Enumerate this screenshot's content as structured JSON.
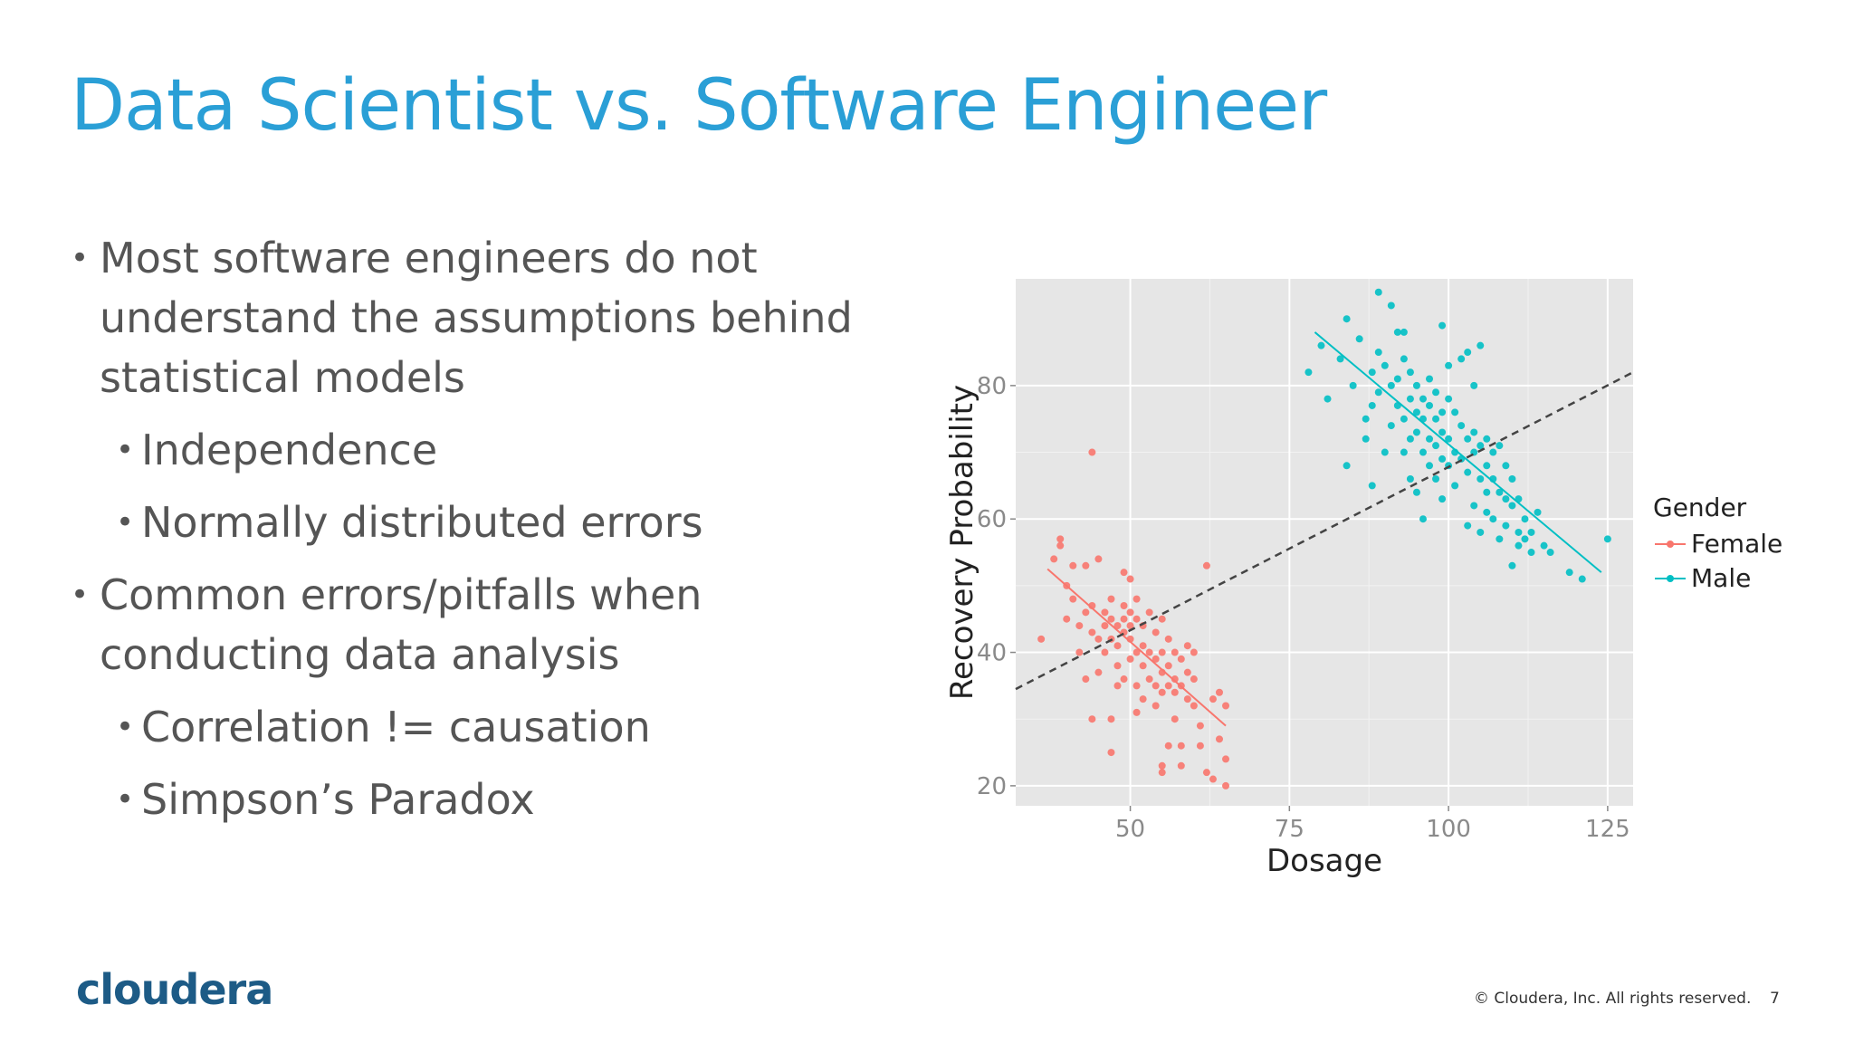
{
  "slide": {
    "title": "Data Scientist vs. Software Engineer",
    "bullets": [
      {
        "level": 1,
        "text": "Most software engineers do not understand the assumptions behind statistical models"
      },
      {
        "level": 2,
        "text": "Independence"
      },
      {
        "level": 2,
        "text": "Normally distributed errors"
      },
      {
        "level": 1,
        "text": "Common errors/pitfalls when conducting data analysis"
      },
      {
        "level": 2,
        "text": "Correlation != causation"
      },
      {
        "level": 2,
        "text": "Simpson’s Paradox"
      }
    ],
    "bullet_glyph": "•",
    "logo_text": "cloudera",
    "copyright": "© Cloudera, Inc. All rights reserved.",
    "page_number": "7"
  },
  "colors": {
    "title": "#2a9fd6",
    "text": "#555555",
    "logo": "#1d5b86",
    "panel": "#e6e6e6",
    "female": "#f8766d",
    "male": "#00bfc4",
    "overall_line": "#444444"
  },
  "chart_data": {
    "type": "scatter",
    "xlabel": "Dosage",
    "ylabel": "Recovery Probability",
    "xlim": [
      32,
      129
    ],
    "ylim": [
      17,
      96
    ],
    "xticks": [
      50,
      75,
      100,
      125
    ],
    "yticks": [
      20,
      40,
      60,
      80
    ],
    "grid": true,
    "legend_title": "Gender",
    "legend_position": "right",
    "series": [
      {
        "name": "Female",
        "color": "#f8766d",
        "trend": [
          [
            37,
            52.5
          ],
          [
            65,
            29
          ]
        ],
        "points": [
          [
            36,
            42
          ],
          [
            38,
            54
          ],
          [
            39,
            56
          ],
          [
            39,
            57
          ],
          [
            40,
            50
          ],
          [
            40,
            45
          ],
          [
            41,
            53
          ],
          [
            41,
            48
          ],
          [
            42,
            44
          ],
          [
            42,
            40
          ],
          [
            43,
            53
          ],
          [
            43,
            46
          ],
          [
            43,
            36
          ],
          [
            44,
            70
          ],
          [
            44,
            47
          ],
          [
            44,
            43
          ],
          [
            44,
            30
          ],
          [
            45,
            54
          ],
          [
            45,
            42
          ],
          [
            45,
            37
          ],
          [
            46,
            46
          ],
          [
            46,
            44
          ],
          [
            46,
            40
          ],
          [
            47,
            48
          ],
          [
            47,
            45
          ],
          [
            47,
            42
          ],
          [
            47,
            30
          ],
          [
            47,
            25
          ],
          [
            48,
            44
          ],
          [
            48,
            41
          ],
          [
            48,
            38
          ],
          [
            48,
            35
          ],
          [
            49,
            52
          ],
          [
            49,
            47
          ],
          [
            49,
            45
          ],
          [
            49,
            43
          ],
          [
            49,
            36
          ],
          [
            50,
            51
          ],
          [
            50,
            46
          ],
          [
            50,
            44
          ],
          [
            50,
            42
          ],
          [
            50,
            39
          ],
          [
            51,
            48
          ],
          [
            51,
            45
          ],
          [
            51,
            40
          ],
          [
            51,
            35
          ],
          [
            51,
            31
          ],
          [
            52,
            44
          ],
          [
            52,
            41
          ],
          [
            52,
            38
          ],
          [
            52,
            33
          ],
          [
            53,
            46
          ],
          [
            53,
            40
          ],
          [
            53,
            36
          ],
          [
            54,
            43
          ],
          [
            54,
            39
          ],
          [
            54,
            35
          ],
          [
            54,
            32
          ],
          [
            55,
            45
          ],
          [
            55,
            40
          ],
          [
            55,
            37
          ],
          [
            55,
            34
          ],
          [
            55,
            23
          ],
          [
            55,
            22
          ],
          [
            56,
            42
          ],
          [
            56,
            38
          ],
          [
            56,
            35
          ],
          [
            56,
            26
          ],
          [
            57,
            40
          ],
          [
            57,
            36
          ],
          [
            57,
            34
          ],
          [
            57,
            30
          ],
          [
            58,
            39
          ],
          [
            58,
            35
          ],
          [
            58,
            26
          ],
          [
            58,
            23
          ],
          [
            59,
            41
          ],
          [
            59,
            37
          ],
          [
            59,
            33
          ],
          [
            60,
            40
          ],
          [
            60,
            36
          ],
          [
            60,
            32
          ],
          [
            61,
            29
          ],
          [
            61,
            26
          ],
          [
            62,
            53
          ],
          [
            62,
            22
          ],
          [
            63,
            33
          ],
          [
            63,
            21
          ],
          [
            64,
            34
          ],
          [
            64,
            27
          ],
          [
            65,
            32
          ],
          [
            65,
            24
          ],
          [
            65,
            20
          ]
        ]
      },
      {
        "name": "Male",
        "color": "#00bfc4",
        "trend": [
          [
            79,
            88
          ],
          [
            124,
            52
          ]
        ],
        "points": [
          [
            78,
            82
          ],
          [
            80,
            86
          ],
          [
            81,
            78
          ],
          [
            83,
            84
          ],
          [
            84,
            90
          ],
          [
            84,
            68
          ],
          [
            85,
            80
          ],
          [
            86,
            87
          ],
          [
            87,
            75
          ],
          [
            87,
            72
          ],
          [
            88,
            82
          ],
          [
            88,
            77
          ],
          [
            88,
            65
          ],
          [
            89,
            94
          ],
          [
            89,
            85
          ],
          [
            89,
            79
          ],
          [
            90,
            83
          ],
          [
            90,
            70
          ],
          [
            91,
            92
          ],
          [
            91,
            80
          ],
          [
            91,
            74
          ],
          [
            92,
            88
          ],
          [
            92,
            81
          ],
          [
            92,
            77
          ],
          [
            93,
            88
          ],
          [
            93,
            84
          ],
          [
            93,
            75
          ],
          [
            93,
            70
          ],
          [
            94,
            82
          ],
          [
            94,
            78
          ],
          [
            94,
            72
          ],
          [
            94,
            66
          ],
          [
            95,
            80
          ],
          [
            95,
            76
          ],
          [
            95,
            73
          ],
          [
            95,
            64
          ],
          [
            96,
            78
          ],
          [
            96,
            75
          ],
          [
            96,
            70
          ],
          [
            96,
            60
          ],
          [
            97,
            81
          ],
          [
            97,
            77
          ],
          [
            97,
            72
          ],
          [
            97,
            68
          ],
          [
            98,
            79
          ],
          [
            98,
            75
          ],
          [
            98,
            71
          ],
          [
            98,
            66
          ],
          [
            99,
            89
          ],
          [
            99,
            76
          ],
          [
            99,
            73
          ],
          [
            99,
            69
          ],
          [
            99,
            63
          ],
          [
            100,
            83
          ],
          [
            100,
            78
          ],
          [
            100,
            72
          ],
          [
            100,
            68
          ],
          [
            101,
            76
          ],
          [
            101,
            70
          ],
          [
            101,
            65
          ],
          [
            102,
            84
          ],
          [
            102,
            74
          ],
          [
            102,
            69
          ],
          [
            103,
            85
          ],
          [
            103,
            72
          ],
          [
            103,
            67
          ],
          [
            103,
            59
          ],
          [
            104,
            80
          ],
          [
            104,
            73
          ],
          [
            104,
            70
          ],
          [
            104,
            62
          ],
          [
            105,
            86
          ],
          [
            105,
            71
          ],
          [
            105,
            66
          ],
          [
            105,
            58
          ],
          [
            106,
            72
          ],
          [
            106,
            68
          ],
          [
            106,
            64
          ],
          [
            106,
            61
          ],
          [
            107,
            70
          ],
          [
            107,
            66
          ],
          [
            107,
            60
          ],
          [
            108,
            71
          ],
          [
            108,
            64
          ],
          [
            108,
            57
          ],
          [
            109,
            68
          ],
          [
            109,
            63
          ],
          [
            109,
            59
          ],
          [
            110,
            66
          ],
          [
            110,
            62
          ],
          [
            110,
            53
          ],
          [
            111,
            63
          ],
          [
            111,
            58
          ],
          [
            111,
            56
          ],
          [
            112,
            60
          ],
          [
            112,
            57
          ],
          [
            113,
            58
          ],
          [
            113,
            55
          ],
          [
            114,
            61
          ],
          [
            115,
            56
          ],
          [
            116,
            55
          ],
          [
            119,
            52
          ],
          [
            121,
            51
          ],
          [
            125,
            57
          ]
        ]
      },
      {
        "name": "",
        "color": "#444444",
        "dashed": true,
        "trend": [
          [
            32,
            34.5
          ],
          [
            129,
            82
          ]
        ],
        "points": []
      }
    ]
  }
}
